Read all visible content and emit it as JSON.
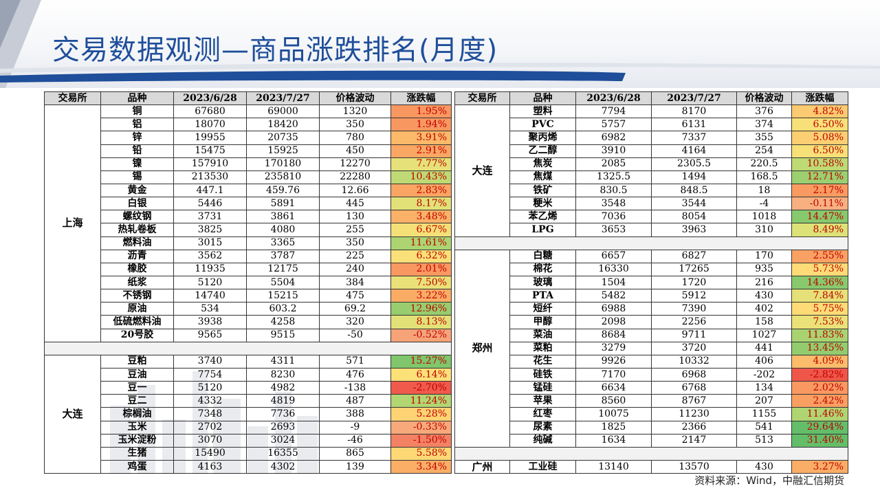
{
  "title": "交易数据观测—商品涨跌排名(月度)",
  "source": "资料来源：Wind，中融汇信期货",
  "headers": [
    "交易所",
    "品种",
    "2023/6/28",
    "2023/7/27",
    "价格波动",
    "涨跌幅"
  ],
  "colors": {
    "title": "#1f4e9a",
    "header_bg": "#d9d9d9",
    "spacer_bg": "#f2f2f2"
  },
  "left_groups": [
    {
      "exchange": "上海",
      "rows": [
        {
          "name": "铜",
          "d1": "67680",
          "d2": "69000",
          "diff": "1320",
          "pct": "1.95%"
        },
        {
          "name": "铝",
          "d1": "18070",
          "d2": "18420",
          "diff": "350",
          "pct": "1.94%"
        },
        {
          "name": "锌",
          "d1": "19955",
          "d2": "20735",
          "diff": "780",
          "pct": "3.91%"
        },
        {
          "name": "铅",
          "d1": "15475",
          "d2": "15925",
          "diff": "450",
          "pct": "2.91%"
        },
        {
          "name": "镍",
          "d1": "157910",
          "d2": "170180",
          "diff": "12270",
          "pct": "7.77%"
        },
        {
          "name": "锡",
          "d1": "213530",
          "d2": "235810",
          "diff": "22280",
          "pct": "10.43%"
        },
        {
          "name": "黄金",
          "d1": "447.1",
          "d2": "459.76",
          "diff": "12.66",
          "pct": "2.83%"
        },
        {
          "name": "白银",
          "d1": "5446",
          "d2": "5891",
          "diff": "445",
          "pct": "8.17%"
        },
        {
          "name": "螺纹钢",
          "d1": "3731",
          "d2": "3861",
          "diff": "130",
          "pct": "3.48%"
        },
        {
          "name": "热轧卷板",
          "d1": "3825",
          "d2": "4080",
          "diff": "255",
          "pct": "6.67%"
        },
        {
          "name": "燃料油",
          "d1": "3015",
          "d2": "3365",
          "diff": "350",
          "pct": "11.61%"
        },
        {
          "name": "沥青",
          "d1": "3562",
          "d2": "3787",
          "diff": "225",
          "pct": "6.32%"
        },
        {
          "name": "橡胶",
          "d1": "11935",
          "d2": "12175",
          "diff": "240",
          "pct": "2.01%"
        },
        {
          "name": "纸浆",
          "d1": "5120",
          "d2": "5504",
          "diff": "384",
          "pct": "7.50%"
        },
        {
          "name": "不锈钢",
          "d1": "14740",
          "d2": "15215",
          "diff": "475",
          "pct": "3.22%"
        },
        {
          "name": "原油",
          "d1": "534",
          "d2": "603.2",
          "diff": "69.2",
          "pct": "12.96%"
        },
        {
          "name": "低硫燃料油",
          "d1": "3938",
          "d2": "4258",
          "diff": "320",
          "pct": "8.13%"
        },
        {
          "name": "20号胶",
          "d1": "9565",
          "d2": "9515",
          "diff": "-50",
          "pct": "-0.52%"
        }
      ]
    },
    {
      "exchange": "大连",
      "rows": [
        {
          "name": "豆粕",
          "d1": "3740",
          "d2": "4311",
          "diff": "571",
          "pct": "15.27%"
        },
        {
          "name": "豆油",
          "d1": "7754",
          "d2": "8230",
          "diff": "476",
          "pct": "6.14%"
        },
        {
          "name": "豆一",
          "d1": "5120",
          "d2": "4982",
          "diff": "-138",
          "pct": "-2.70%"
        },
        {
          "name": "豆二",
          "d1": "4332",
          "d2": "4819",
          "diff": "487",
          "pct": "11.24%"
        },
        {
          "name": "棕榈油",
          "d1": "7348",
          "d2": "7736",
          "diff": "388",
          "pct": "5.28%"
        },
        {
          "name": "玉米",
          "d1": "2702",
          "d2": "2693",
          "diff": "-9",
          "pct": "-0.33%"
        },
        {
          "name": "玉米淀粉",
          "d1": "3070",
          "d2": "3024",
          "diff": "-46",
          "pct": "-1.50%"
        },
        {
          "name": "生猪",
          "d1": "15490",
          "d2": "16355",
          "diff": "865",
          "pct": "5.58%"
        },
        {
          "name": "鸡蛋",
          "d1": "4163",
          "d2": "4302",
          "diff": "139",
          "pct": "3.34%"
        }
      ]
    }
  ],
  "right_groups": [
    {
      "exchange": "大连",
      "rows": [
        {
          "name": "塑料",
          "d1": "7794",
          "d2": "8170",
          "diff": "376",
          "pct": "4.82%"
        },
        {
          "name": "PVC",
          "d1": "5757",
          "d2": "6131",
          "diff": "374",
          "pct": "6.50%"
        },
        {
          "name": "聚丙烯",
          "d1": "6982",
          "d2": "7337",
          "diff": "355",
          "pct": "5.08%"
        },
        {
          "name": "乙二醇",
          "d1": "3910",
          "d2": "4164",
          "diff": "254",
          "pct": "6.50%"
        },
        {
          "name": "焦炭",
          "d1": "2085",
          "d2": "2305.5",
          "diff": "220.5",
          "pct": "10.58%"
        },
        {
          "name": "焦煤",
          "d1": "1325.5",
          "d2": "1494",
          "diff": "168.5",
          "pct": "12.71%"
        },
        {
          "name": "铁矿",
          "d1": "830.5",
          "d2": "848.5",
          "diff": "18",
          "pct": "2.17%"
        },
        {
          "name": "粳米",
          "d1": "3548",
          "d2": "3544",
          "diff": "-4",
          "pct": "-0.11%"
        },
        {
          "name": "苯乙烯",
          "d1": "7036",
          "d2": "8054",
          "diff": "1018",
          "pct": "14.47%"
        },
        {
          "name": "LPG",
          "d1": "3653",
          "d2": "3963",
          "diff": "310",
          "pct": "8.49%"
        }
      ]
    },
    {
      "exchange": "郑州",
      "rows": [
        {
          "name": "白糖",
          "d1": "6657",
          "d2": "6827",
          "diff": "170",
          "pct": "2.55%"
        },
        {
          "name": "棉花",
          "d1": "16330",
          "d2": "17265",
          "diff": "935",
          "pct": "5.73%"
        },
        {
          "name": "玻璃",
          "d1": "1504",
          "d2": "1720",
          "diff": "216",
          "pct": "14.36%"
        },
        {
          "name": "PTA",
          "d1": "5482",
          "d2": "5912",
          "diff": "430",
          "pct": "7.84%"
        },
        {
          "name": "短纤",
          "d1": "6988",
          "d2": "7390",
          "diff": "402",
          "pct": "5.75%"
        },
        {
          "name": "甲醇",
          "d1": "2098",
          "d2": "2256",
          "diff": "158",
          "pct": "7.53%"
        },
        {
          "name": "菜油",
          "d1": "8684",
          "d2": "9711",
          "diff": "1027",
          "pct": "11.83%"
        },
        {
          "name": "菜粕",
          "d1": "3279",
          "d2": "3720",
          "diff": "441",
          "pct": "13.45%"
        },
        {
          "name": "花生",
          "d1": "9926",
          "d2": "10332",
          "diff": "406",
          "pct": "4.09%"
        },
        {
          "name": "硅铁",
          "d1": "7170",
          "d2": "6968",
          "diff": "-202",
          "pct": "-2.82%"
        },
        {
          "name": "锰硅",
          "d1": "6634",
          "d2": "6768",
          "diff": "134",
          "pct": "2.02%"
        },
        {
          "name": "苹果",
          "d1": "8560",
          "d2": "8767",
          "diff": "207",
          "pct": "2.42%"
        },
        {
          "name": "红枣",
          "d1": "10075",
          "d2": "11230",
          "diff": "1155",
          "pct": "11.46%"
        },
        {
          "name": "尿素",
          "d1": "1825",
          "d2": "2366",
          "diff": "541",
          "pct": "29.64%"
        },
        {
          "name": "纯碱",
          "d1": "1634",
          "d2": "2147",
          "diff": "513",
          "pct": "31.40%"
        }
      ]
    },
    {
      "exchange": "广州",
      "rows": [
        {
          "name": "工业硅",
          "d1": "13140",
          "d2": "13570",
          "diff": "430",
          "pct": "3.27%"
        }
      ]
    }
  ]
}
